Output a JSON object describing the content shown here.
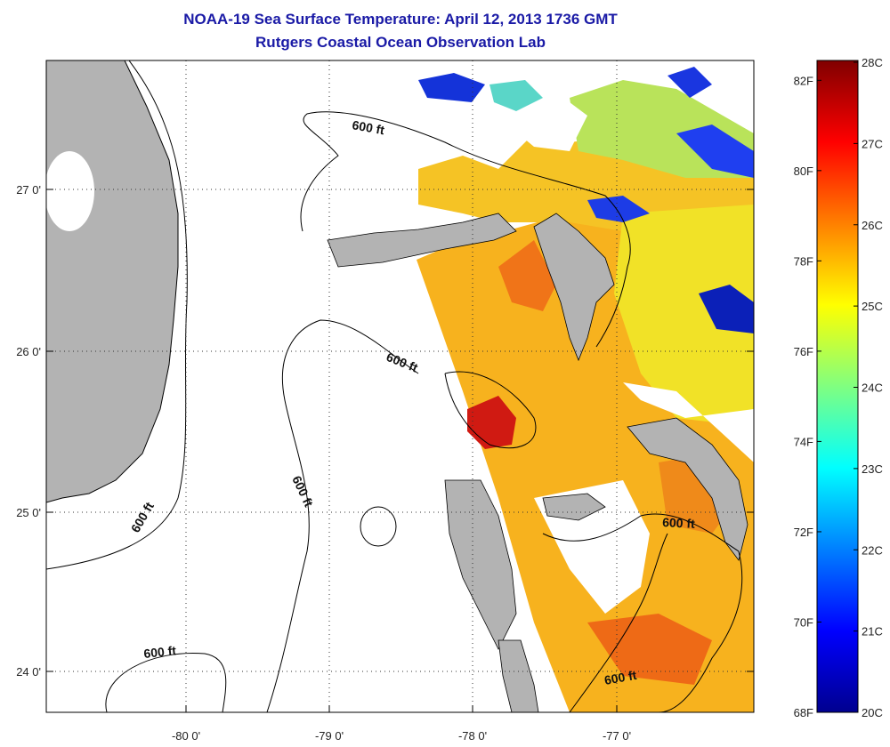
{
  "title": "NOAA-19 Sea Surface Temperature:  April 12, 2013 1736 GMT",
  "subtitle": "Rutgers Coastal Ocean Observation Lab",
  "map": {
    "lon_ticks": [
      "-80 0'",
      "-79 0'",
      "-78 0'",
      "-77 0'"
    ],
    "lat_ticks": [
      "27 0'",
      "26 0'",
      "25 0'",
      "24 0'"
    ],
    "contour_label": "600 ft",
    "colors": {
      "land": "#b3b3b3",
      "cloud": "#ffffff",
      "contour": "#000000"
    }
  },
  "colorbar": {
    "fahrenheit_ticks": [
      "82F",
      "80F",
      "78F",
      "76F",
      "74F",
      "72F",
      "70F",
      "68F"
    ],
    "celsius_ticks": [
      "28C",
      "27C",
      "26C",
      "25C",
      "24C",
      "23C",
      "22C",
      "21C",
      "20C"
    ],
    "min_c": 20,
    "max_c": 28,
    "colormap": "jet"
  }
}
